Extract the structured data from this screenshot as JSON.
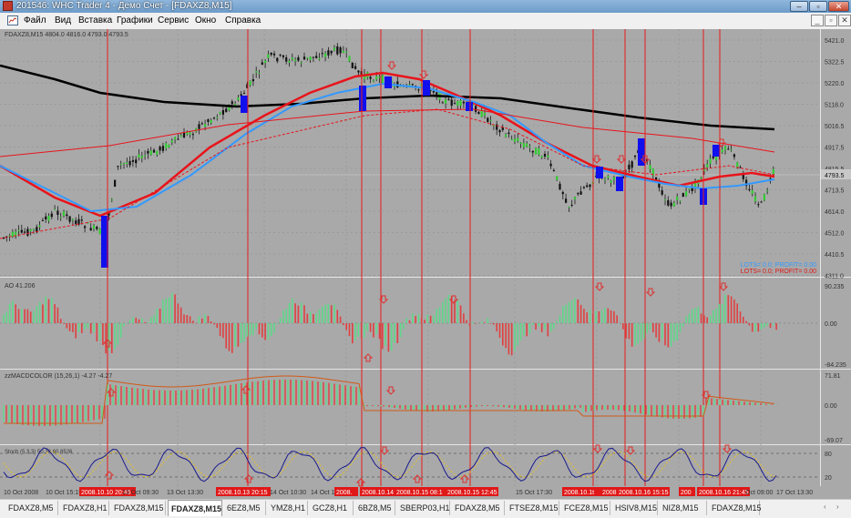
{
  "window": {
    "title": "201546: WHC Trader 4 - Демо Счет - [FDAXZ8,M15]",
    "controls": [
      "–",
      "▫",
      "✕"
    ]
  },
  "menu": {
    "items": [
      "Файл",
      "Вид",
      "Вставка",
      "Графики",
      "Сервис",
      "Окно",
      "Справка"
    ],
    "mdi_controls": [
      "_",
      "▫",
      "✕"
    ]
  },
  "chart": {
    "price_panel": {
      "label": "FDAXZ8,M15  4804.0 4816.0 4793.0 4793.5",
      "y_ticks": [
        "5421.0",
        "5322.5",
        "5220.0",
        "5118.0",
        "5016.5",
        "4917.5",
        "4815.5",
        "4713.5",
        "4614.0",
        "4512.0",
        "4410.5",
        "4311.0"
      ],
      "current_price": "4793.5",
      "lots_line1": "LOTS= 0.0; PROFIT= 0.00",
      "lots_line2": "LOTS= 0.0; PROFIT= 0.00"
    },
    "ao_panel": {
      "label": "AO 41.206",
      "y_ticks": [
        "90.235",
        "0.00",
        "-84.235"
      ]
    },
    "macd_panel": {
      "label": "zzMACDCOLOR (15,26,1) -4.27 -4.27",
      "y_ticks": [
        "71.81",
        "0.00",
        "-69.07"
      ]
    },
    "stoch_panel": {
      "label": "Stoch (5,3,3) 50.36 60.8526",
      "y_ticks": [
        "80",
        "20"
      ]
    },
    "time_labels": [
      {
        "text": "10 Oct 2008",
        "hl": false
      },
      {
        "text": "10 Oct 15:15",
        "hl": false
      },
      {
        "text": "2008.10.10 20:45",
        "hl": true
      },
      {
        "text": "13 Oct 09:30",
        "hl": false
      },
      {
        "text": "13 Oct 13:30",
        "hl": false
      },
      {
        "text": "2008.10.13 20:15",
        "hl": true
      },
      {
        "text": "14 Oct 10:30",
        "hl": false
      },
      {
        "text": "14 Oct 13:15",
        "hl": false
      },
      {
        "text": "2008.",
        "hl": true
      },
      {
        "text": "2008.10.14 17",
        "hl": true
      },
      {
        "text": "2008.10.15 08:1",
        "hl": true
      },
      {
        "text": "2008.10.15 12:45",
        "hl": true
      },
      {
        "text": "15 Oct 17:30",
        "hl": false
      },
      {
        "text": "2008.10.1t",
        "hl": true
      },
      {
        "text": "2008.1",
        "hl": true
      },
      {
        "text": "2008.10.16 15:15",
        "hl": true
      },
      {
        "text": "200",
        "hl": true
      },
      {
        "text": "2008.10.16 21:45",
        "hl": true
      },
      {
        "text": "Oct 09:00",
        "hl": false
      },
      {
        "text": "17 Oct 13:30",
        "hl": false
      }
    ]
  },
  "tabs": [
    {
      "label": "FDAXZ8,M5",
      "active": false
    },
    {
      "label": "FDAXZ8,H1",
      "active": false
    },
    {
      "label": "FDAXZ8,M15",
      "active": false
    },
    {
      "label": "FDAXZ8,M15",
      "active": true
    },
    {
      "label": "6EZ8,M5",
      "active": false
    },
    {
      "label": "YMZ8,H1",
      "active": false
    },
    {
      "label": "GCZ8,H1",
      "active": false
    },
    {
      "label": "6BZ8,M5",
      "active": false
    },
    {
      "label": "SBERP03,H1",
      "active": false
    },
    {
      "label": "FDAXZ8,M5",
      "active": false
    },
    {
      "label": "FTSEZ8,M15",
      "active": false
    },
    {
      "label": "FCEZ8,M15",
      "active": false
    },
    {
      "label": "HSIV8,M15",
      "active": false
    },
    {
      "label": "NIZ8,M15",
      "active": false
    },
    {
      "label": "FDAXZ8,M15",
      "active": false
    }
  ],
  "tab_scroll": [
    "‹",
    "›"
  ],
  "colors": {
    "chart_bg": "#a9a9a9",
    "bull_candle": "#33cc33",
    "bear_candle": "#111111",
    "ma_long": "#000000",
    "ma_red": "#e8141c",
    "ma_blue": "#3399ff",
    "signal_box": "#1010ee",
    "vline": "#e81b1b",
    "ao_up": "#5fd98a",
    "ao_down": "#e04040",
    "stoch_main": "#1a1a8c",
    "stoch_signal": "#e8c020"
  },
  "icons": {
    "app": "mt4-app-icon",
    "menu": "chart-doc-icon",
    "arrow": "arrow-marker-icon"
  }
}
